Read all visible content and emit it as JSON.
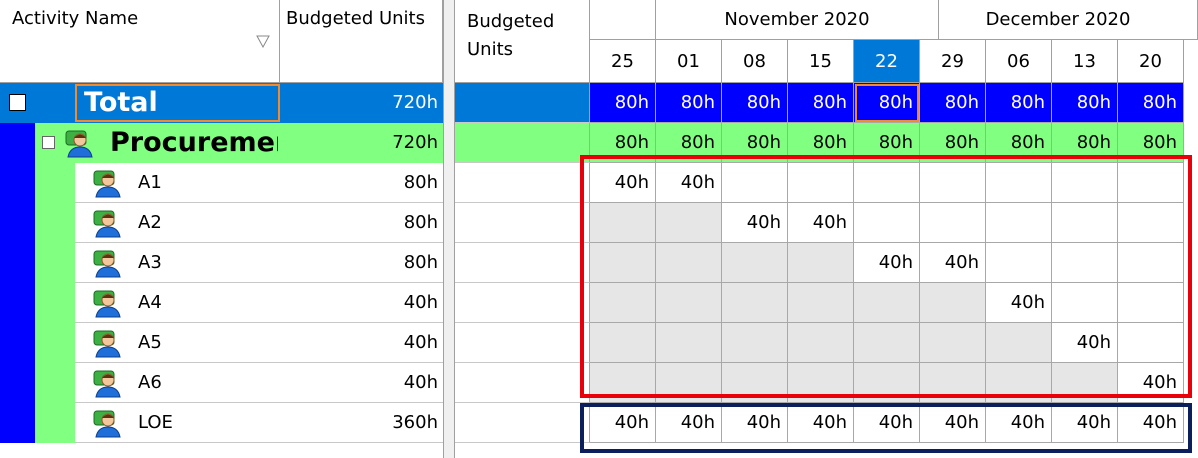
{
  "left_table": {
    "headers": [
      "Activity Name",
      "Budgeted Units"
    ],
    "rows": [
      {
        "name": "Total",
        "units": "720h"
      },
      {
        "name": "Procuremer",
        "units": "720h"
      },
      {
        "name": "A1",
        "units": "80h"
      },
      {
        "name": "A2",
        "units": "80h"
      },
      {
        "name": "A3",
        "units": "80h"
      },
      {
        "name": "A4",
        "units": "40h"
      },
      {
        "name": "A5",
        "units": "40h"
      },
      {
        "name": "A6",
        "units": "40h"
      },
      {
        "name": "LOE",
        "units": "360h"
      }
    ]
  },
  "timescale": {
    "units_header": "Budgeted Units",
    "months": [
      "November 2020",
      "December 2020"
    ],
    "weeks": [
      "25",
      "01",
      "08",
      "15",
      "22",
      "29",
      "06",
      "13",
      "20"
    ],
    "rows": [
      [
        "80h",
        "80h",
        "80h",
        "80h",
        "80h",
        "80h",
        "80h",
        "80h",
        "80h"
      ],
      [
        "80h",
        "80h",
        "80h",
        "80h",
        "80h",
        "80h",
        "80h",
        "80h",
        "80h"
      ],
      [
        "40h",
        "40h",
        null,
        null,
        null,
        null,
        null,
        null,
        null
      ],
      [
        null,
        null,
        "40h",
        "40h",
        null,
        null,
        null,
        null,
        null
      ],
      [
        null,
        null,
        null,
        null,
        "40h",
        "40h",
        null,
        null,
        null
      ],
      [
        null,
        null,
        null,
        null,
        null,
        null,
        "40h",
        null,
        null
      ],
      [
        null,
        null,
        null,
        null,
        null,
        null,
        null,
        "40h",
        null
      ],
      [
        null,
        null,
        null,
        null,
        null,
        null,
        null,
        null,
        "40h"
      ],
      [
        "40h",
        "40h",
        "40h",
        "40h",
        "40h",
        "40h",
        "40h",
        "40h",
        "40h"
      ]
    ]
  }
}
